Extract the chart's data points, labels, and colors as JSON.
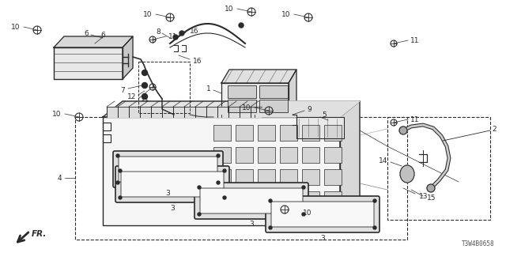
{
  "bg_color": "#ffffff",
  "line_color": "#2a2a2a",
  "part_number_label": "T3W4B0658",
  "figsize": [
    6.4,
    3.2
  ],
  "dpi": 100
}
